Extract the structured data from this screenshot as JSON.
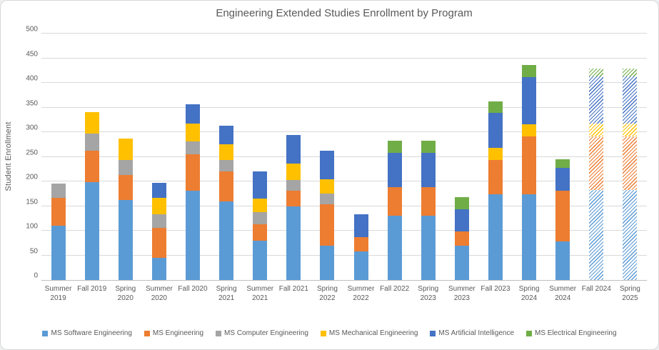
{
  "chart_data": {
    "type": "bar",
    "stacked": true,
    "title": "Engineering Extended Studies Enrollment by Program",
    "ylabel": "Student Enrollment",
    "ylim": [
      0,
      500
    ],
    "ytick_step": 50,
    "grid": true,
    "legend_position": "bottom",
    "categories": [
      [
        "Summer",
        "2019"
      ],
      [
        "Fall 2019"
      ],
      [
        "Spring",
        "2020"
      ],
      [
        "Summer",
        "2020"
      ],
      [
        "Fall 2020"
      ],
      [
        "Spring",
        "2021"
      ],
      [
        "Summer",
        "2021"
      ],
      [
        "Fall 2021"
      ],
      [
        "Spring",
        "2022"
      ],
      [
        "Summer",
        "2022"
      ],
      [
        "Fall 2022"
      ],
      [
        "Spring",
        "2023"
      ],
      [
        "Summer",
        "2023"
      ],
      [
        "Fall 2023"
      ],
      [
        "Spring",
        "2024"
      ],
      [
        "Summer",
        "2024"
      ],
      [
        "Fall 2024"
      ],
      [
        "Spring",
        "2025"
      ]
    ],
    "series": [
      {
        "name": "MS Software Engineering",
        "color": "#5B9BD5",
        "values": [
          110,
          198,
          163,
          45,
          181,
          160,
          80,
          150,
          70,
          58,
          130,
          130,
          70,
          174,
          174,
          78,
          182,
          182
        ]
      },
      {
        "name": "MS Engineering",
        "color": "#ED7D31",
        "values": [
          57,
          64,
          50,
          61,
          74,
          60,
          33,
          31,
          84,
          29,
          58,
          58,
          28,
          69,
          118,
          103,
          109,
          109
        ]
      },
      {
        "name": "MS Computer Engineering",
        "color": "#A5A5A5",
        "values": [
          28,
          35,
          30,
          27,
          26,
          24,
          25,
          22,
          21,
          0,
          0,
          0,
          0,
          0,
          0,
          0,
          0,
          0
        ]
      },
      {
        "name": "MS Mechanical Engineering",
        "color": "#FFC000",
        "values": [
          0,
          44,
          44,
          34,
          36,
          31,
          27,
          33,
          30,
          0,
          0,
          0,
          0,
          25,
          24,
          0,
          27,
          27
        ]
      },
      {
        "name": "MS Artificial Intelligence",
        "color": "#4472C4",
        "values": [
          0,
          0,
          0,
          30,
          39,
          38,
          55,
          58,
          57,
          46,
          70,
          70,
          45,
          71,
          96,
          47,
          95,
          95
        ]
      },
      {
        "name": "MS Electrical Engineering",
        "color": "#70AD47",
        "values": [
          0,
          0,
          0,
          0,
          0,
          0,
          0,
          0,
          0,
          0,
          24,
          24,
          25,
          24,
          25,
          17,
          16,
          16
        ]
      }
    ],
    "totals": [
      195,
      341,
      287,
      197,
      356,
      313,
      220,
      294,
      262,
      133,
      282,
      282,
      168,
      363,
      437,
      245,
      429,
      429
    ],
    "forecast_categories": [
      "Fall 2024",
      "Spring 2025"
    ],
    "forecast_style": "hatched",
    "colors": {
      "gridline": "#D9D9D9",
      "axis_line": "#BFBFBF",
      "text": "#595959"
    }
  }
}
